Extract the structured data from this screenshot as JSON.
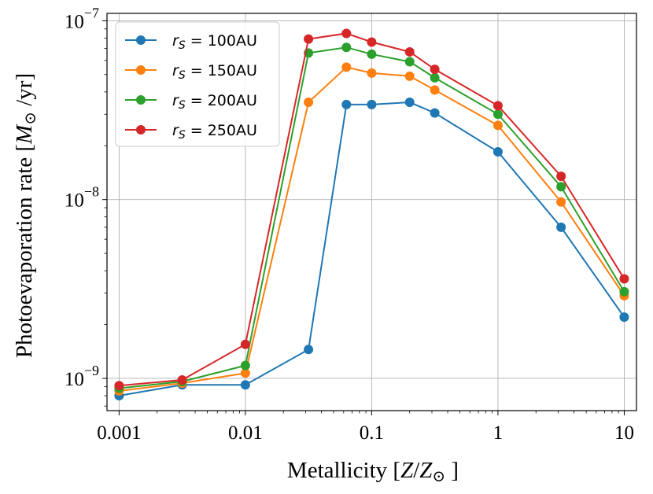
{
  "chart_data": {
    "type": "line",
    "xlabel": "Metallicity [Z/Z⊙]",
    "ylabel": "Photoevaporation rate [M⊙/yr]",
    "xscale": "log",
    "yscale": "log",
    "xlim": [
      0.000802,
      12.5
    ],
    "ylim": [
      6.6e-10,
      1.1e-07
    ],
    "grid": true,
    "legend_position": "upper-left",
    "x_ticks": [
      {
        "value": 0.001,
        "label": "0.001"
      },
      {
        "value": 0.01,
        "label": "0.01"
      },
      {
        "value": 0.1,
        "label": "0.1"
      },
      {
        "value": 1,
        "label": "1"
      },
      {
        "value": 10,
        "label": "10"
      }
    ],
    "y_ticks": [
      {
        "value": 1e-09,
        "base": "10",
        "exp": "−9"
      },
      {
        "value": 1e-08,
        "base": "10",
        "exp": "−8"
      },
      {
        "value": 1e-07,
        "base": "10",
        "exp": "−7"
      }
    ],
    "x": [
      0.001,
      0.00316,
      0.01,
      0.0316,
      0.0631,
      0.1,
      0.2,
      0.316,
      1,
      3.16,
      10
    ],
    "series": [
      {
        "name": "rS = 100AU",
        "label_var": "r",
        "label_sub": "S",
        "label_rest": " = 100AU",
        "color": "#1f77b4",
        "values": [
          8e-10,
          9.2e-10,
          9.2e-10,
          1.45e-09,
          3.4e-08,
          3.4e-08,
          3.5e-08,
          3.05e-08,
          1.85e-08,
          7e-09,
          2.2e-09
        ]
      },
      {
        "name": "rS = 150AU",
        "label_var": "r",
        "label_sub": "S",
        "label_rest": " = 150AU",
        "color": "#ff7f0e",
        "values": [
          8.5e-10,
          9.4e-10,
          1.07e-09,
          3.5e-08,
          5.5e-08,
          5.1e-08,
          4.9e-08,
          4.1e-08,
          2.6e-08,
          9.7e-09,
          2.9e-09
        ]
      },
      {
        "name": "rS = 200AU",
        "label_var": "r",
        "label_sub": "S",
        "label_rest": " = 200AU",
        "color": "#2ca02c",
        "values": [
          8.8e-10,
          9.6e-10,
          1.18e-09,
          6.6e-08,
          7.1e-08,
          6.5e-08,
          5.9e-08,
          4.8e-08,
          3e-08,
          1.18e-08,
          3.05e-09
        ]
      },
      {
        "name": "rS = 250AU",
        "label_var": "r",
        "label_sub": "S",
        "label_rest": " = 250AU",
        "color": "#d62728",
        "values": [
          9.1e-10,
          9.8e-10,
          1.55e-09,
          7.9e-08,
          8.5e-08,
          7.6e-08,
          6.7e-08,
          5.35e-08,
          3.35e-08,
          1.35e-08,
          3.6e-09
        ]
      }
    ]
  }
}
